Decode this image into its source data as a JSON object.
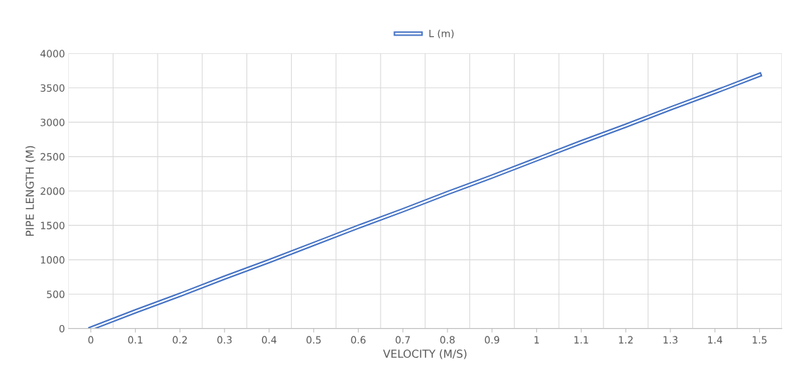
{
  "chart_data": {
    "type": "line",
    "xlabel": "VELOCITY (M/S)",
    "ylabel": "PIPE LENGTH (M)",
    "categories": [
      "0",
      "0.1",
      "0.2",
      "0.3",
      "0.4",
      "0.5",
      "0.6",
      "0.7",
      "0.8",
      "0.9",
      "1",
      "1.1",
      "1.2",
      "1.3",
      "1.4",
      "1.5"
    ],
    "series": [
      {
        "name": "L (m)",
        "color": "#4472c4",
        "values": [
          0,
          250,
          490,
          740,
          980,
          1230,
          1480,
          1720,
          1970,
          2210,
          2460,
          2710,
          2950,
          3200,
          3440,
          3690
        ]
      }
    ],
    "ylim": [
      0,
      4000
    ],
    "yticks": [
      0,
      500,
      1000,
      1500,
      2000,
      2500,
      3000,
      3500,
      4000
    ],
    "grid": true,
    "legend": "top",
    "marker": "none",
    "line_style": "solid"
  }
}
